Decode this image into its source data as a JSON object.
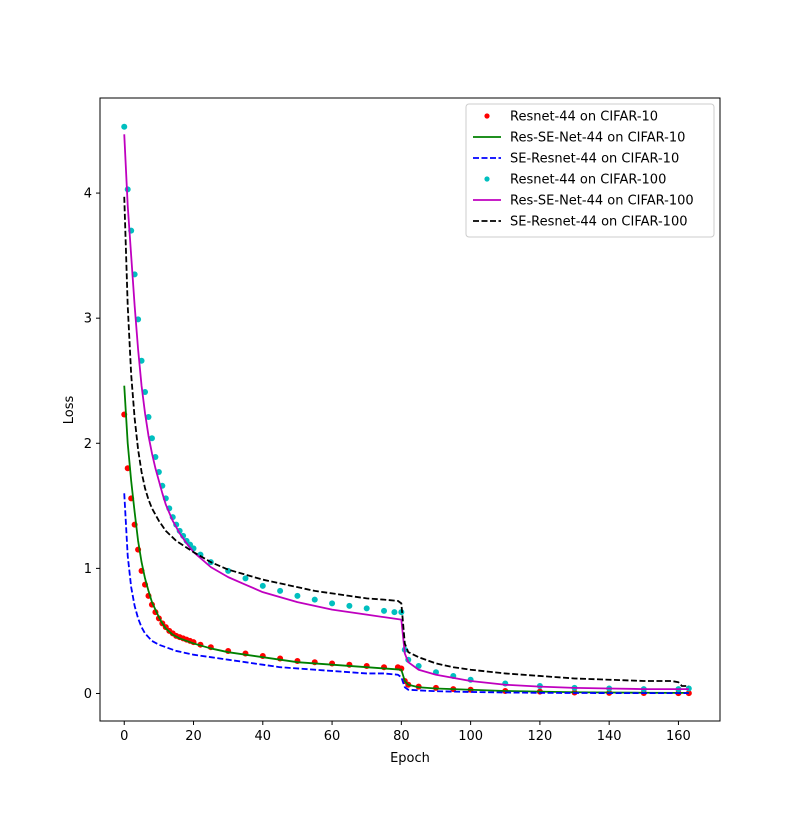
{
  "chart_data": {
    "type": "line",
    "xlabel": "Epoch",
    "ylabel": "Loss",
    "xlim": [
      -7,
      172
    ],
    "ylim": [
      -0.22,
      4.76
    ],
    "xticks": [
      0,
      20,
      40,
      60,
      80,
      100,
      120,
      140,
      160
    ],
    "yticks": [
      0,
      1,
      2,
      3,
      4
    ],
    "legend_position": "top-right",
    "grid": false,
    "series": [
      {
        "name": "Resnet-44 on CIFAR-10",
        "style": "dots",
        "color": "#ff0000",
        "points": [
          [
            0,
            2.23
          ],
          [
            1,
            1.8
          ],
          [
            2,
            1.56
          ],
          [
            3,
            1.35
          ],
          [
            4,
            1.15
          ],
          [
            5,
            0.98
          ],
          [
            6,
            0.87
          ],
          [
            7,
            0.78
          ],
          [
            8,
            0.71
          ],
          [
            9,
            0.65
          ],
          [
            10,
            0.6
          ],
          [
            11,
            0.56
          ],
          [
            12,
            0.53
          ],
          [
            13,
            0.5
          ],
          [
            14,
            0.48
          ],
          [
            15,
            0.46
          ],
          [
            16,
            0.45
          ],
          [
            17,
            0.44
          ],
          [
            18,
            0.43
          ],
          [
            19,
            0.42
          ],
          [
            20,
            0.41
          ],
          [
            22,
            0.39
          ],
          [
            25,
            0.37
          ],
          [
            30,
            0.34
          ],
          [
            35,
            0.32
          ],
          [
            40,
            0.3
          ],
          [
            45,
            0.28
          ],
          [
            50,
            0.26
          ],
          [
            55,
            0.25
          ],
          [
            60,
            0.24
          ],
          [
            65,
            0.23
          ],
          [
            70,
            0.22
          ],
          [
            75,
            0.21
          ],
          [
            79,
            0.21
          ],
          [
            80,
            0.2
          ],
          [
            81,
            0.1
          ],
          [
            82,
            0.07
          ],
          [
            85,
            0.055
          ],
          [
            90,
            0.045
          ],
          [
            95,
            0.035
          ],
          [
            100,
            0.03
          ],
          [
            110,
            0.02
          ],
          [
            120,
            0.015
          ],
          [
            130,
            0.008
          ],
          [
            140,
            0.005
          ],
          [
            150,
            0.004
          ],
          [
            160,
            0.003
          ],
          [
            163,
            0.003
          ]
        ]
      },
      {
        "name": "Res-SE-Net-44 on CIFAR-10",
        "style": "solid",
        "color": "#008000",
        "points": [
          [
            0,
            2.46
          ],
          [
            1,
            2.0
          ],
          [
            2,
            1.7
          ],
          [
            3,
            1.45
          ],
          [
            4,
            1.22
          ],
          [
            5,
            1.05
          ],
          [
            6,
            0.92
          ],
          [
            7,
            0.82
          ],
          [
            8,
            0.73
          ],
          [
            9,
            0.67
          ],
          [
            10,
            0.61
          ],
          [
            11,
            0.56
          ],
          [
            12,
            0.52
          ],
          [
            14,
            0.47
          ],
          [
            16,
            0.44
          ],
          [
            18,
            0.42
          ],
          [
            20,
            0.4
          ],
          [
            25,
            0.36
          ],
          [
            30,
            0.33
          ],
          [
            35,
            0.31
          ],
          [
            40,
            0.29
          ],
          [
            45,
            0.27
          ],
          [
            50,
            0.25
          ],
          [
            55,
            0.24
          ],
          [
            60,
            0.23
          ],
          [
            65,
            0.22
          ],
          [
            70,
            0.21
          ],
          [
            75,
            0.2
          ],
          [
            80,
            0.19
          ],
          [
            81,
            0.1
          ],
          [
            82,
            0.07
          ],
          [
            85,
            0.05
          ],
          [
            90,
            0.04
          ],
          [
            100,
            0.03
          ],
          [
            110,
            0.02
          ],
          [
            120,
            0.015
          ],
          [
            130,
            0.01
          ],
          [
            140,
            0.008
          ],
          [
            150,
            0.006
          ],
          [
            160,
            0.005
          ],
          [
            163,
            0.005
          ]
        ]
      },
      {
        "name": "SE-Resnet-44 on CIFAR-10",
        "style": "dashed",
        "color": "#0000ff",
        "points": [
          [
            0,
            1.6
          ],
          [
            1,
            1.1
          ],
          [
            2,
            0.85
          ],
          [
            3,
            0.7
          ],
          [
            4,
            0.6
          ],
          [
            5,
            0.53
          ],
          [
            6,
            0.48
          ],
          [
            7,
            0.45
          ],
          [
            8,
            0.42
          ],
          [
            10,
            0.39
          ],
          [
            12,
            0.37
          ],
          [
            15,
            0.34
          ],
          [
            20,
            0.31
          ],
          [
            25,
            0.29
          ],
          [
            30,
            0.27
          ],
          [
            35,
            0.25
          ],
          [
            40,
            0.23
          ],
          [
            45,
            0.21
          ],
          [
            50,
            0.2
          ],
          [
            55,
            0.19
          ],
          [
            60,
            0.18
          ],
          [
            65,
            0.17
          ],
          [
            70,
            0.16
          ],
          [
            75,
            0.16
          ],
          [
            79,
            0.15
          ],
          [
            80,
            0.13
          ],
          [
            81,
            0.05
          ],
          [
            82,
            0.03
          ],
          [
            85,
            0.025
          ],
          [
            90,
            0.018
          ],
          [
            100,
            0.012
          ],
          [
            110,
            0.008
          ],
          [
            120,
            0.005
          ],
          [
            130,
            0.004
          ],
          [
            140,
            0.003
          ],
          [
            150,
            0.003
          ],
          [
            160,
            0.003
          ],
          [
            163,
            0.003
          ]
        ]
      },
      {
        "name": "Resnet-44 on CIFAR-100",
        "style": "dots",
        "color": "#00bfbf",
        "points": [
          [
            0,
            4.53
          ],
          [
            1,
            4.03
          ],
          [
            2,
            3.7
          ],
          [
            3,
            3.35
          ],
          [
            4,
            2.99
          ],
          [
            5,
            2.66
          ],
          [
            6,
            2.41
          ],
          [
            7,
            2.21
          ],
          [
            8,
            2.04
          ],
          [
            9,
            1.89
          ],
          [
            10,
            1.77
          ],
          [
            11,
            1.66
          ],
          [
            12,
            1.56
          ],
          [
            13,
            1.48
          ],
          [
            14,
            1.41
          ],
          [
            15,
            1.35
          ],
          [
            16,
            1.3
          ],
          [
            17,
            1.26
          ],
          [
            18,
            1.22
          ],
          [
            19,
            1.19
          ],
          [
            20,
            1.16
          ],
          [
            22,
            1.11
          ],
          [
            25,
            1.05
          ],
          [
            30,
            0.98
          ],
          [
            35,
            0.92
          ],
          [
            40,
            0.86
          ],
          [
            45,
            0.82
          ],
          [
            50,
            0.78
          ],
          [
            55,
            0.75
          ],
          [
            60,
            0.72
          ],
          [
            65,
            0.7
          ],
          [
            70,
            0.68
          ],
          [
            75,
            0.66
          ],
          [
            78,
            0.65
          ],
          [
            80,
            0.65
          ],
          [
            81,
            0.35
          ],
          [
            82,
            0.27
          ],
          [
            85,
            0.22
          ],
          [
            90,
            0.17
          ],
          [
            95,
            0.14
          ],
          [
            100,
            0.11
          ],
          [
            110,
            0.08
          ],
          [
            120,
            0.06
          ],
          [
            130,
            0.045
          ],
          [
            140,
            0.04
          ],
          [
            150,
            0.035
          ],
          [
            160,
            0.035
          ],
          [
            163,
            0.04
          ]
        ]
      },
      {
        "name": "Res-SE-Net-44 on CIFAR-100",
        "style": "solid",
        "color": "#bf00bf",
        "points": [
          [
            0,
            4.47
          ],
          [
            1,
            3.9
          ],
          [
            2,
            3.5
          ],
          [
            3,
            3.1
          ],
          [
            4,
            2.75
          ],
          [
            5,
            2.46
          ],
          [
            6,
            2.24
          ],
          [
            7,
            2.06
          ],
          [
            8,
            1.92
          ],
          [
            9,
            1.8
          ],
          [
            10,
            1.7
          ],
          [
            11,
            1.6
          ],
          [
            12,
            1.51
          ],
          [
            14,
            1.38
          ],
          [
            16,
            1.28
          ],
          [
            18,
            1.2
          ],
          [
            20,
            1.13
          ],
          [
            25,
            1.01
          ],
          [
            30,
            0.93
          ],
          [
            35,
            0.87
          ],
          [
            40,
            0.81
          ],
          [
            45,
            0.77
          ],
          [
            50,
            0.73
          ],
          [
            55,
            0.7
          ],
          [
            60,
            0.67
          ],
          [
            65,
            0.65
          ],
          [
            70,
            0.63
          ],
          [
            75,
            0.61
          ],
          [
            80,
            0.59
          ],
          [
            81,
            0.32
          ],
          [
            82,
            0.25
          ],
          [
            85,
            0.19
          ],
          [
            90,
            0.15
          ],
          [
            100,
            0.1
          ],
          [
            110,
            0.07
          ],
          [
            120,
            0.055
          ],
          [
            130,
            0.045
          ],
          [
            140,
            0.04
          ],
          [
            150,
            0.035
          ],
          [
            160,
            0.035
          ],
          [
            163,
            0.035
          ]
        ]
      },
      {
        "name": "SE-Resnet-44 on CIFAR-100",
        "style": "dashed",
        "color": "#000000",
        "points": [
          [
            0,
            3.97
          ],
          [
            1,
            3.1
          ],
          [
            2,
            2.55
          ],
          [
            3,
            2.2
          ],
          [
            4,
            1.95
          ],
          [
            5,
            1.77
          ],
          [
            6,
            1.64
          ],
          [
            7,
            1.55
          ],
          [
            8,
            1.48
          ],
          [
            10,
            1.38
          ],
          [
            12,
            1.3
          ],
          [
            15,
            1.22
          ],
          [
            20,
            1.13
          ],
          [
            25,
            1.05
          ],
          [
            30,
            0.99
          ],
          [
            35,
            0.95
          ],
          [
            40,
            0.91
          ],
          [
            45,
            0.88
          ],
          [
            50,
            0.85
          ],
          [
            55,
            0.82
          ],
          [
            60,
            0.8
          ],
          [
            65,
            0.78
          ],
          [
            70,
            0.76
          ],
          [
            75,
            0.75
          ],
          [
            79,
            0.74
          ],
          [
            80,
            0.72
          ],
          [
            81,
            0.4
          ],
          [
            82,
            0.33
          ],
          [
            85,
            0.29
          ],
          [
            90,
            0.24
          ],
          [
            95,
            0.21
          ],
          [
            100,
            0.19
          ],
          [
            110,
            0.16
          ],
          [
            120,
            0.14
          ],
          [
            130,
            0.12
          ],
          [
            140,
            0.11
          ],
          [
            150,
            0.1
          ],
          [
            158,
            0.1
          ],
          [
            160,
            0.09
          ],
          [
            161,
            0.06
          ],
          [
            163,
            0.06
          ]
        ]
      }
    ]
  }
}
